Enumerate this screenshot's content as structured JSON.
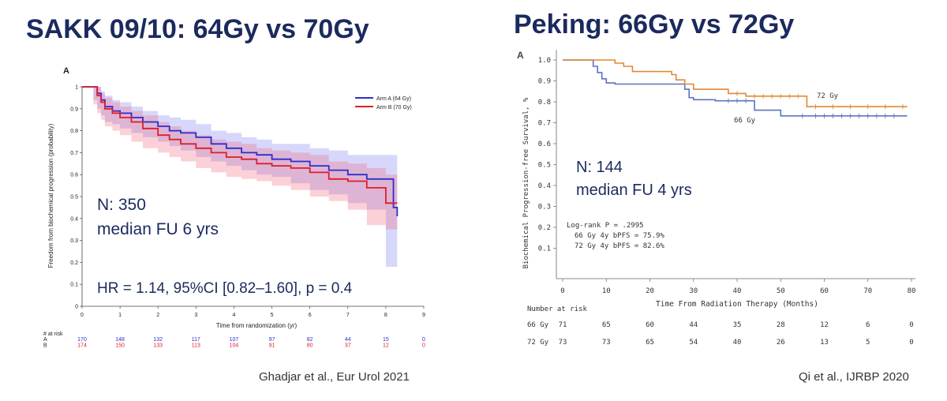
{
  "slide": {
    "left_title": "SAKK 09/10: 64Gy vs 70Gy",
    "right_title": "Peking: 66Gy vs 72Gy",
    "left_citation": "Ghadjar et al., Eur Urol 2021",
    "right_citation": "Qi et al., IJRBP 2020"
  },
  "colors": {
    "title": "#1b2a5e",
    "arm_a": "#2b2ed0",
    "arm_b": "#e01b2b",
    "gy66": "#5b74c2",
    "gy72": "#e08a36"
  },
  "chart_data": [
    {
      "type": "line",
      "panel_label": "A",
      "xlabel": "Time from randomization (yr)",
      "ylabel": "Freedom from biochemical progression (probability)",
      "xlim": [
        0,
        9
      ],
      "ylim": [
        0,
        1
      ],
      "x_ticks": [
        "0",
        "1",
        "2",
        "3",
        "4",
        "5",
        "6",
        "7",
        "8",
        "9"
      ],
      "y_ticks": [
        "0",
        "0.1",
        "0.2",
        "0.3",
        "0.4",
        "0.5",
        "0.6",
        "0.7",
        "0.8",
        "0.9",
        "1"
      ],
      "legend": {
        "position": "top-right",
        "entries": [
          "Arm A (64 Gy)",
          "Arm B (70 Gy)"
        ]
      },
      "series": [
        {
          "name": "Arm A (64 Gy)",
          "x": [
            0,
            0.3,
            0.4,
            0.5,
            0.6,
            0.8,
            1,
            1.3,
            1.6,
            2,
            2.3,
            2.6,
            3,
            3.4,
            3.8,
            4.2,
            4.6,
            5,
            5.5,
            6,
            6.5,
            7,
            7.5,
            8,
            8.2,
            8.3
          ],
          "y": [
            1,
            1,
            0.97,
            0.94,
            0.91,
            0.89,
            0.88,
            0.86,
            0.84,
            0.82,
            0.8,
            0.79,
            0.77,
            0.74,
            0.72,
            0.7,
            0.69,
            0.67,
            0.66,
            0.64,
            0.62,
            0.6,
            0.58,
            0.58,
            0.45,
            0.41
          ],
          "ci_upper": [
            1,
            1,
            1,
            0.98,
            0.96,
            0.94,
            0.93,
            0.91,
            0.89,
            0.87,
            0.86,
            0.85,
            0.83,
            0.8,
            0.79,
            0.77,
            0.76,
            0.74,
            0.74,
            0.72,
            0.71,
            0.69,
            0.69,
            0.69,
            0.69,
            0.69
          ],
          "ci_lower": [
            1,
            1,
            0.94,
            0.9,
            0.87,
            0.84,
            0.83,
            0.81,
            0.79,
            0.77,
            0.75,
            0.73,
            0.71,
            0.68,
            0.66,
            0.64,
            0.62,
            0.6,
            0.59,
            0.56,
            0.53,
            0.51,
            0.47,
            0.44,
            0.18,
            0.18
          ]
        },
        {
          "name": "Arm B (70 Gy)",
          "x": [
            0,
            0.3,
            0.4,
            0.5,
            0.6,
            0.8,
            1,
            1.3,
            1.6,
            2,
            2.3,
            2.6,
            3,
            3.4,
            3.8,
            4.2,
            4.6,
            5,
            5.5,
            6,
            6.5,
            7,
            7.5,
            8,
            8.3
          ],
          "y": [
            1,
            1,
            0.96,
            0.93,
            0.9,
            0.88,
            0.86,
            0.84,
            0.81,
            0.78,
            0.76,
            0.74,
            0.72,
            0.7,
            0.68,
            0.67,
            0.65,
            0.64,
            0.63,
            0.61,
            0.58,
            0.57,
            0.54,
            0.47,
            0.47
          ],
          "ci_upper": [
            1,
            1,
            1,
            0.97,
            0.95,
            0.93,
            0.91,
            0.89,
            0.87,
            0.84,
            0.82,
            0.8,
            0.78,
            0.76,
            0.75,
            0.74,
            0.72,
            0.71,
            0.7,
            0.69,
            0.66,
            0.65,
            0.63,
            0.6,
            0.58
          ],
          "ci_lower": [
            1,
            1,
            0.92,
            0.88,
            0.85,
            0.82,
            0.8,
            0.78,
            0.75,
            0.72,
            0.7,
            0.68,
            0.66,
            0.63,
            0.61,
            0.59,
            0.58,
            0.57,
            0.55,
            0.53,
            0.5,
            0.48,
            0.44,
            0.37,
            0.35
          ]
        }
      ],
      "annotations": {
        "n": "N: 350",
        "fu": "median FU 6 yrs",
        "hr": "HR = 1.14, 95%CI [0.82–1.60], p = 0.4"
      },
      "risk_table": {
        "header": "# at risk",
        "rows": [
          {
            "label": "A",
            "values": [
              "170",
              "148",
              "132",
              "117",
              "107",
              "97",
              "82",
              "44",
              "15",
              "0"
            ]
          },
          {
            "label": "B",
            "values": [
              "174",
              "150",
              "133",
              "113",
              "104",
              "91",
              "80",
              "37",
              "12",
              "0"
            ]
          }
        ]
      }
    },
    {
      "type": "line",
      "panel_label": "A",
      "xlabel": "Time From Radiation Therapy (Months)",
      "ylabel": "Biochemical Progression-free Survival, %",
      "xlim": [
        0,
        80
      ],
      "ylim": [
        0,
        1
      ],
      "x_ticks": [
        "0",
        "10",
        "20",
        "30",
        "40",
        "50",
        "60",
        "70",
        "80"
      ],
      "y_ticks": [
        "1.0",
        "0.9",
        "0.8",
        "0.7",
        "0.6",
        "0.5",
        "0.4",
        "0.3",
        "0.2",
        "0.1"
      ],
      "series": [
        {
          "name": "66 Gy",
          "x": [
            0,
            6,
            7,
            8,
            9,
            10,
            12,
            20,
            28,
            29,
            30,
            35,
            44,
            50,
            79
          ],
          "y": [
            1,
            1,
            0.97,
            0.94,
            0.91,
            0.89,
            0.885,
            0.885,
            0.86,
            0.82,
            0.81,
            0.805,
            0.76,
            0.733,
            0.733
          ]
        },
        {
          "name": "72 Gy",
          "x": [
            0,
            6,
            12,
            14,
            16,
            25,
            26,
            28,
            30,
            38,
            42,
            56,
            79
          ],
          "y": [
            1,
            1,
            0.985,
            0.97,
            0.945,
            0.93,
            0.905,
            0.885,
            0.86,
            0.84,
            0.827,
            0.777,
            0.777
          ]
        }
      ],
      "annotations": {
        "n": "N: 144",
        "fu": "median FU 4 yrs",
        "logrank": "Log-rank P = .2995",
        "bpfs66": "66 Gy 4y bPFS = 75.9%",
        "bpfs72": "72 Gy 4y bPFS = 82.6%"
      },
      "risk_table": {
        "header": "Number at risk",
        "rows": [
          {
            "label": "66 Gy",
            "values": [
              "71",
              "65",
              "60",
              "44",
              "35",
              "28",
              "12",
              "6",
              "0"
            ]
          },
          {
            "label": "72 Gy",
            "values": [
              "73",
              "73",
              "65",
              "54",
              "40",
              "26",
              "13",
              "5",
              "0"
            ]
          }
        ]
      }
    }
  ]
}
